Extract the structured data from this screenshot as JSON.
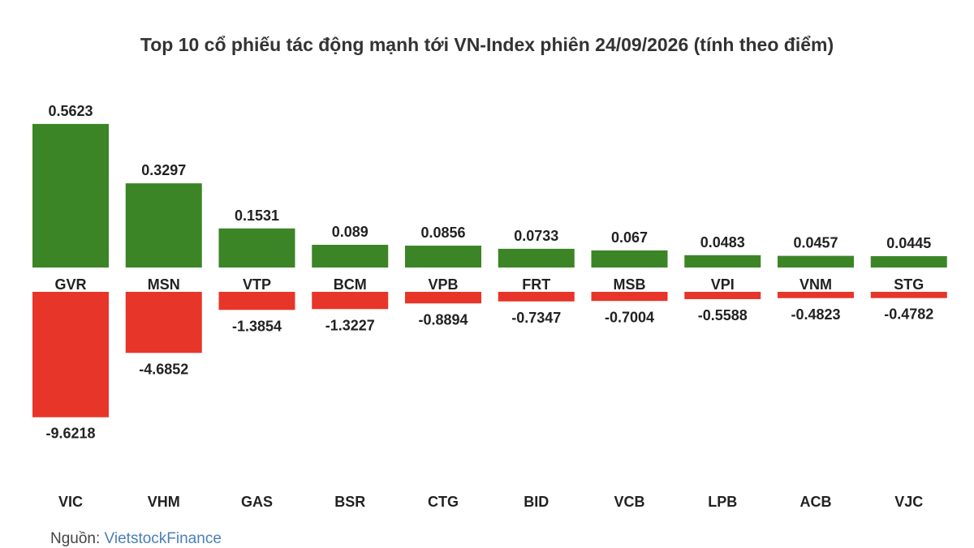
{
  "chart_data": {
    "type": "bar",
    "title": "Top 10 cổ phiếu tác động mạnh tới VN-Index phiên 24/09/2026 (tính theo điểm)",
    "positive": {
      "categories": [
        "GVR",
        "MSN",
        "VTP",
        "BCM",
        "VPB",
        "FRT",
        "MSB",
        "VPI",
        "VNM",
        "STG"
      ],
      "values": [
        0.5623,
        0.3297,
        0.1531,
        0.089,
        0.0856,
        0.0733,
        0.067,
        0.0483,
        0.0457,
        0.0445
      ],
      "labels": [
        "0.5623",
        "0.3297",
        "0.1531",
        "0.089",
        "0.0856",
        "0.0733",
        "0.067",
        "0.0483",
        "0.0457",
        "0.0445"
      ],
      "color": "#3b8526"
    },
    "negative": {
      "categories": [
        "VIC",
        "VHM",
        "GAS",
        "BSR",
        "CTG",
        "BID",
        "VCB",
        "LPB",
        "ACB",
        "VJC"
      ],
      "values": [
        -9.6218,
        -4.6852,
        -1.3854,
        -1.3227,
        -0.8894,
        -0.7347,
        -0.7004,
        -0.5588,
        -0.4823,
        -0.4782
      ],
      "labels": [
        "-9.6218",
        "-4.6852",
        "-1.3854",
        "-1.3227",
        "-0.8894",
        "-0.7347",
        "-0.7004",
        "-0.5588",
        "-0.4823",
        "-0.4782"
      ],
      "color": "#e8352a"
    }
  },
  "source": {
    "prefix": "Nguồn: ",
    "name": "VietstockFinance"
  }
}
